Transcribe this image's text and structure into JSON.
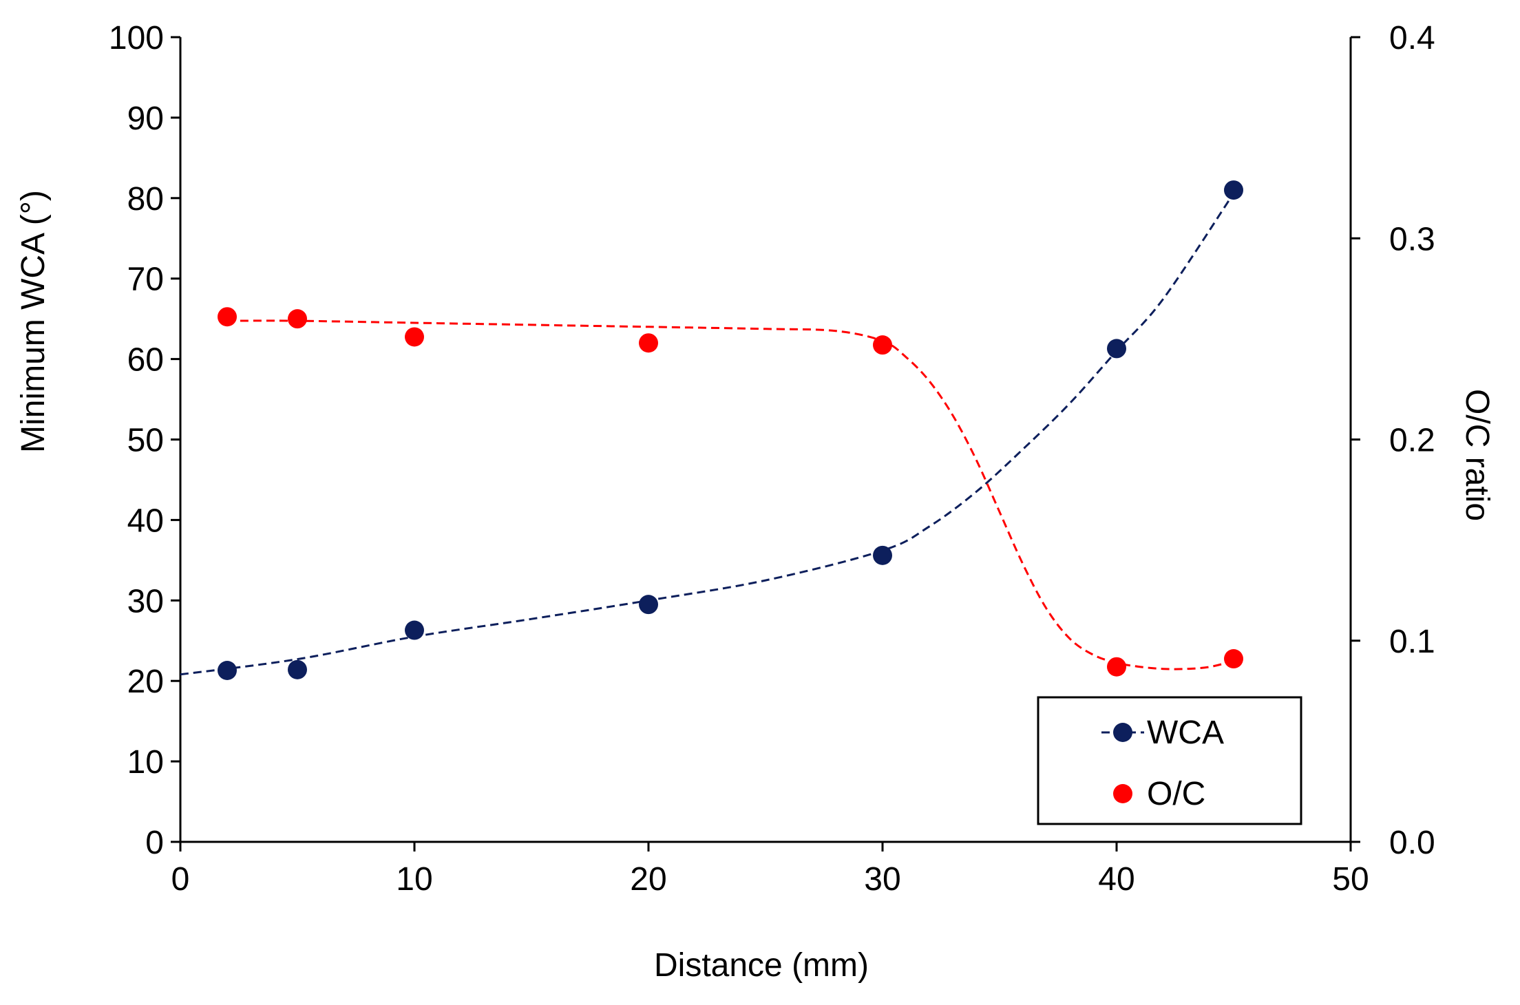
{
  "chart_data": {
    "type": "scatter",
    "title": "",
    "xlabel": "Distance (mm)",
    "ylabel": "Minimum WCA (°)",
    "y2label": "O/C ratio",
    "xlim": [
      0,
      50
    ],
    "ylim": [
      0,
      100
    ],
    "y2lim": [
      0.0,
      0.4
    ],
    "xticks": [
      "0",
      "10",
      "20",
      "30",
      "40",
      "50"
    ],
    "yticks": [
      "0",
      "10",
      "20",
      "30",
      "40",
      "50",
      "60",
      "70",
      "80",
      "90",
      "100"
    ],
    "y2ticks": [
      "0.0",
      "0.1",
      "0.2",
      "0.3",
      "0.4"
    ],
    "grid": false,
    "legend_position": "bottom-right",
    "series": [
      {
        "name": "WCA",
        "axis": "left",
        "color": "#0d1f5c",
        "x": [
          2,
          5,
          10,
          20,
          30,
          40,
          45
        ],
        "y": [
          21.3,
          21.4,
          26.3,
          29.5,
          35.6,
          61.3,
          81.0
        ],
        "trend": {
          "style": "dashed",
          "x": [
            0,
            5,
            10,
            15,
            20,
            25,
            30,
            32,
            34,
            36,
            38,
            40,
            42,
            45
          ],
          "y": [
            20.8,
            22.7,
            25.5,
            27.7,
            30.0,
            32.5,
            36.2,
            39.2,
            43.5,
            48.8,
            54.5,
            61.0,
            67.5,
            80.6
          ]
        }
      },
      {
        "name": "O/C",
        "axis": "right",
        "color": "#ff0000",
        "x": [
          2,
          5,
          10,
          20,
          30,
          40,
          45
        ],
        "y": [
          0.261,
          0.26,
          0.251,
          0.248,
          0.247,
          0.087,
          0.091
        ],
        "trend": {
          "style": "dashed",
          "x": [
            2,
            5,
            10,
            15,
            20,
            25,
            28,
            30,
            31,
            32,
            33,
            34,
            35,
            36,
            37,
            38,
            39,
            40,
            41,
            42,
            43,
            44,
            45
          ],
          "y": [
            0.259,
            0.259,
            0.258,
            0.257,
            0.256,
            0.255,
            0.254,
            0.249,
            0.241,
            0.229,
            0.212,
            0.19,
            0.164,
            0.138,
            0.116,
            0.101,
            0.093,
            0.089,
            0.087,
            0.086,
            0.086,
            0.087,
            0.09
          ]
        }
      }
    ]
  }
}
